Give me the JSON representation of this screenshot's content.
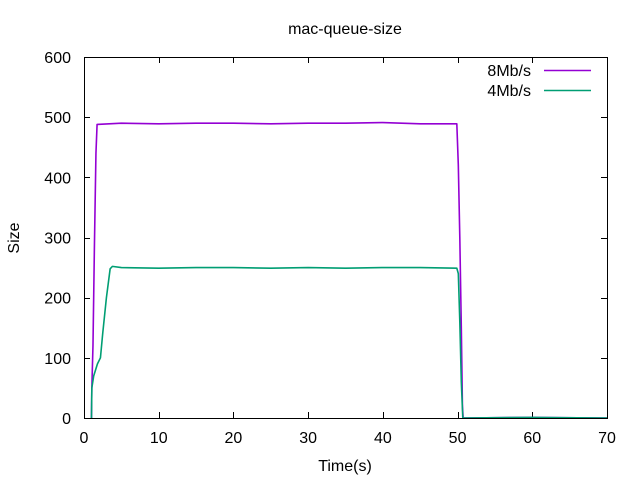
{
  "chart_data": {
    "type": "line",
    "title": "mac-queue-size",
    "xlabel": "Time(s)",
    "ylabel": "Size",
    "xlim": [
      0,
      70
    ],
    "ylim": [
      0,
      600
    ],
    "xticks": [
      0,
      10,
      20,
      30,
      40,
      50,
      60,
      70
    ],
    "yticks": [
      0,
      100,
      200,
      300,
      400,
      500,
      600
    ],
    "grid": false,
    "legend_position": "top-right",
    "series": [
      {
        "name": "8Mb/s",
        "color": "#9400d3",
        "points": [
          [
            1.0,
            0
          ],
          [
            1.05,
            50
          ],
          [
            1.2,
            120
          ],
          [
            1.4,
            290
          ],
          [
            1.6,
            440
          ],
          [
            1.75,
            488
          ],
          [
            5,
            490
          ],
          [
            10,
            489
          ],
          [
            15,
            490
          ],
          [
            20,
            490
          ],
          [
            25,
            489
          ],
          [
            30,
            490
          ],
          [
            35,
            490
          ],
          [
            40,
            491
          ],
          [
            45,
            489
          ],
          [
            49.9,
            489
          ],
          [
            50.1,
            420
          ],
          [
            50.3,
            300
          ],
          [
            50.5,
            150
          ],
          [
            50.65,
            20
          ],
          [
            50.75,
            0
          ],
          [
            60,
            1
          ],
          [
            70,
            0
          ]
        ]
      },
      {
        "name": "4Mb/s",
        "color": "#009e73",
        "points": [
          [
            1.0,
            0
          ],
          [
            1.05,
            50
          ],
          [
            1.3,
            70
          ],
          [
            1.8,
            90
          ],
          [
            2.2,
            100
          ],
          [
            2.5,
            140
          ],
          [
            3.0,
            200
          ],
          [
            3.5,
            248
          ],
          [
            3.8,
            252
          ],
          [
            5,
            250
          ],
          [
            10,
            249
          ],
          [
            15,
            250
          ],
          [
            20,
            250
          ],
          [
            25,
            249
          ],
          [
            30,
            250
          ],
          [
            35,
            249
          ],
          [
            40,
            250
          ],
          [
            45,
            250
          ],
          [
            49.9,
            249
          ],
          [
            50.1,
            240
          ],
          [
            50.3,
            160
          ],
          [
            50.5,
            60
          ],
          [
            50.7,
            0
          ],
          [
            60,
            1
          ],
          [
            70,
            0
          ]
        ]
      }
    ]
  }
}
